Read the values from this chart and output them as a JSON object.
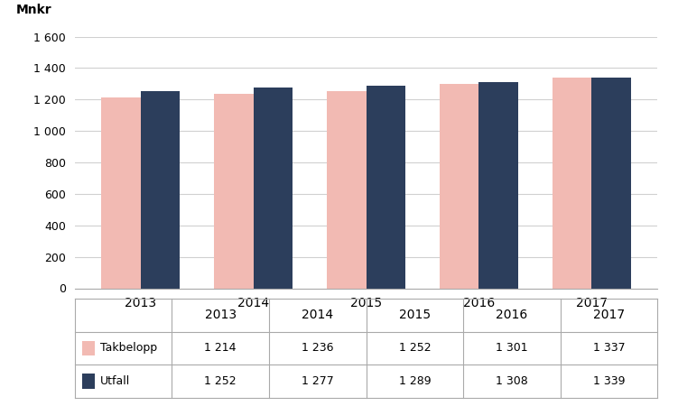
{
  "years": [
    "2013",
    "2014",
    "2015",
    "2016",
    "2017"
  ],
  "takbelopp": [
    1214,
    1236,
    1252,
    1301,
    1337
  ],
  "utfall": [
    1252,
    1277,
    1289,
    1308,
    1339
  ],
  "takbelopp_color": "#f2bab3",
  "utfall_color": "#2c3e5c",
  "ylabel": "Mnkr",
  "ylim": [
    0,
    1600
  ],
  "yticks": [
    0,
    200,
    400,
    600,
    800,
    1000,
    1200,
    1400,
    1600
  ],
  "ytick_labels": [
    "0",
    "200",
    "400",
    "600",
    "800",
    "1 000",
    "1 200",
    "1 400",
    "1 600"
  ],
  "legend_takbelopp": "Takbelopp",
  "legend_utfall": "Utfall",
  "background_color": "#ffffff",
  "grid_color": "#d0d0d0",
  "table_takbelopp": [
    "1 214",
    "1 236",
    "1 252",
    "1 301",
    "1 337"
  ],
  "table_utfall": [
    "1 252",
    "1 277",
    "1 289",
    "1 308",
    "1 339"
  ],
  "bar_width": 0.35
}
